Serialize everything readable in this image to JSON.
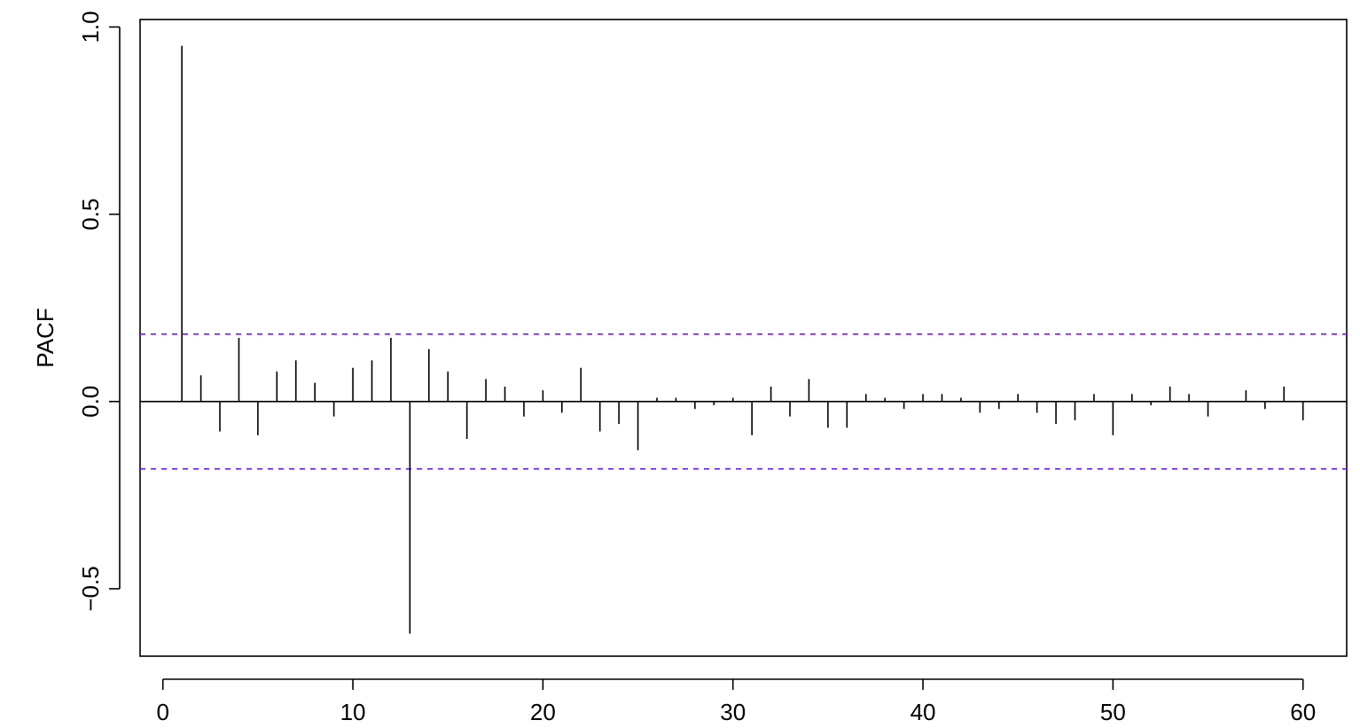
{
  "chart_data": {
    "type": "bar",
    "title": "",
    "xlabel": "",
    "ylabel": "PACF",
    "xlim": [
      -1.2,
      62.3
    ],
    "ylim": [
      -0.68,
      1.02
    ],
    "x_ticks": [
      0,
      10,
      20,
      30,
      40,
      50,
      60
    ],
    "x_tick_labels": [
      "0",
      "10",
      "20",
      "30",
      "40",
      "50",
      "60"
    ],
    "y_ticks": [
      -0.5,
      0.0,
      0.5,
      1.0
    ],
    "y_tick_labels": [
      "−0.5",
      "0.0",
      "0.5",
      "1.0"
    ],
    "grid": false,
    "zero_line": true,
    "confidence_band": {
      "upper": 0.18,
      "lower": -0.18,
      "color": "#6a1cff",
      "style": "dashed"
    },
    "series": [
      {
        "lags": [
          1,
          2,
          3,
          4,
          5,
          6,
          7,
          8,
          9,
          10,
          11,
          12,
          13,
          14,
          15,
          16,
          17,
          18,
          19,
          20,
          21,
          22,
          23,
          24,
          25,
          26,
          27,
          28,
          29,
          30,
          31,
          32,
          33,
          34,
          35,
          36,
          37,
          38,
          39,
          40,
          41,
          42,
          43,
          44,
          45,
          46,
          47,
          48,
          49,
          50,
          51,
          52,
          53,
          54,
          55,
          56,
          57,
          58,
          59,
          60
        ],
        "values": [
          0.95,
          0.07,
          -0.08,
          0.17,
          -0.09,
          0.08,
          0.11,
          0.05,
          -0.04,
          0.09,
          0.11,
          0.17,
          -0.62,
          0.14,
          0.08,
          -0.1,
          0.06,
          0.04,
          -0.04,
          0.03,
          -0.03,
          0.09,
          -0.08,
          -0.06,
          -0.13,
          0.01,
          0.01,
          -0.02,
          -0.01,
          0.01,
          -0.09,
          0.04,
          -0.04,
          0.06,
          -0.07,
          -0.07,
          0.02,
          0.01,
          -0.02,
          0.02,
          0.02,
          0.01,
          -0.03,
          -0.02,
          0.02,
          -0.03,
          -0.06,
          -0.05,
          0.02,
          -0.09,
          0.02,
          -0.01,
          0.04,
          0.02,
          -0.04,
          0.0,
          0.03,
          -0.02,
          0.04,
          -0.05
        ]
      }
    ]
  }
}
